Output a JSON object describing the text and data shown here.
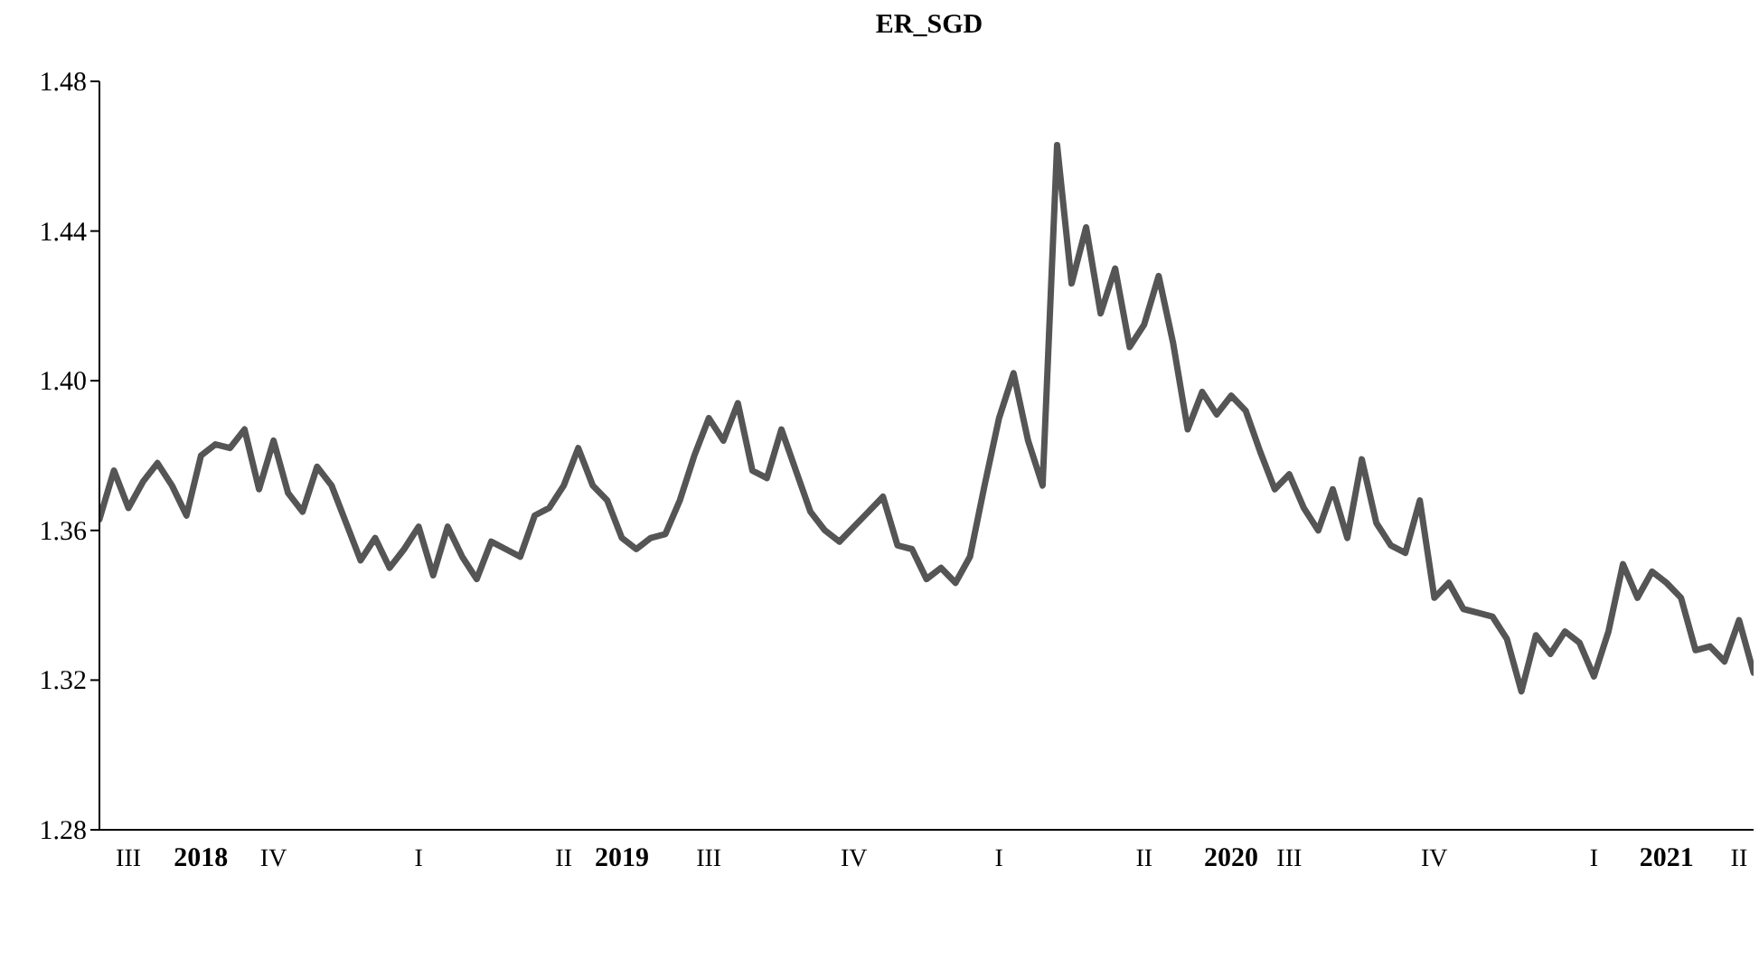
{
  "chart_data": {
    "type": "line",
    "title": "ER_SGD",
    "categories": [
      null,
      null,
      "III",
      null,
      null,
      null,
      null,
      "2018",
      null,
      null,
      null,
      null,
      "IV",
      null,
      null,
      null,
      null,
      null,
      null,
      null,
      null,
      null,
      "I",
      null,
      null,
      null,
      null,
      null,
      null,
      null,
      null,
      null,
      "II",
      null,
      null,
      null,
      "2019",
      null,
      null,
      null,
      null,
      null,
      "III",
      null,
      null,
      null,
      null,
      null,
      null,
      null,
      null,
      null,
      "IV",
      null,
      null,
      null,
      null,
      null,
      null,
      null,
      null,
      null,
      "I",
      null,
      null,
      null,
      null,
      null,
      null,
      null,
      null,
      null,
      "II",
      null,
      null,
      null,
      null,
      null,
      "2020",
      null,
      null,
      null,
      "III",
      null,
      null,
      null,
      null,
      null,
      null,
      null,
      null,
      null,
      "IV",
      null,
      null,
      null,
      null,
      null,
      null,
      null,
      null,
      null,
      null,
      "I",
      null,
      null,
      null,
      null,
      "2021",
      null,
      null,
      null,
      null,
      "II",
      null
    ],
    "series": [
      {
        "color": "#555555",
        "values": [
          1.363,
          1.376,
          1.366,
          1.373,
          1.378,
          1.372,
          1.364,
          1.38,
          1.383,
          1.382,
          1.387,
          1.371,
          1.384,
          1.37,
          1.365,
          1.377,
          1.372,
          1.362,
          1.352,
          1.358,
          1.35,
          1.355,
          1.361,
          1.348,
          1.361,
          1.353,
          1.347,
          1.357,
          1.355,
          1.353,
          1.364,
          1.366,
          1.372,
          1.382,
          1.372,
          1.368,
          1.358,
          1.355,
          1.358,
          1.359,
          1.368,
          1.38,
          1.39,
          1.384,
          1.394,
          1.376,
          1.374,
          1.387,
          1.376,
          1.365,
          1.36,
          1.357,
          1.361,
          1.365,
          1.369,
          1.356,
          1.355,
          1.347,
          1.35,
          1.346,
          1.353,
          1.372,
          1.39,
          1.402,
          1.384,
          1.372,
          1.463,
          1.426,
          1.441,
          1.418,
          1.43,
          1.409,
          1.415,
          1.428,
          1.41,
          1.387,
          1.397,
          1.391,
          1.396,
          1.392,
          1.381,
          1.371,
          1.375,
          1.366,
          1.36,
          1.371,
          1.358,
          1.379,
          1.362,
          1.356,
          1.354,
          1.368,
          1.342,
          1.346,
          1.339,
          1.338,
          1.337,
          1.331,
          1.317,
          1.332,
          1.327,
          1.333,
          1.33,
          1.321,
          1.333,
          1.351,
          1.342,
          1.349,
          1.346,
          1.342,
          1.328,
          1.329,
          1.325,
          1.336,
          1.322
        ]
      }
    ],
    "ylim": [
      1.28,
      1.48
    ],
    "yticks": [
      {
        "value": 1.28,
        "label": "1.28"
      },
      {
        "value": 1.32,
        "label": "1.32"
      },
      {
        "value": 1.36,
        "label": "1.36"
      },
      {
        "value": 1.4,
        "label": "1.40"
      },
      {
        "value": 1.44,
        "label": "1.44"
      },
      {
        "value": 1.48,
        "label": "1.48"
      }
    ]
  }
}
